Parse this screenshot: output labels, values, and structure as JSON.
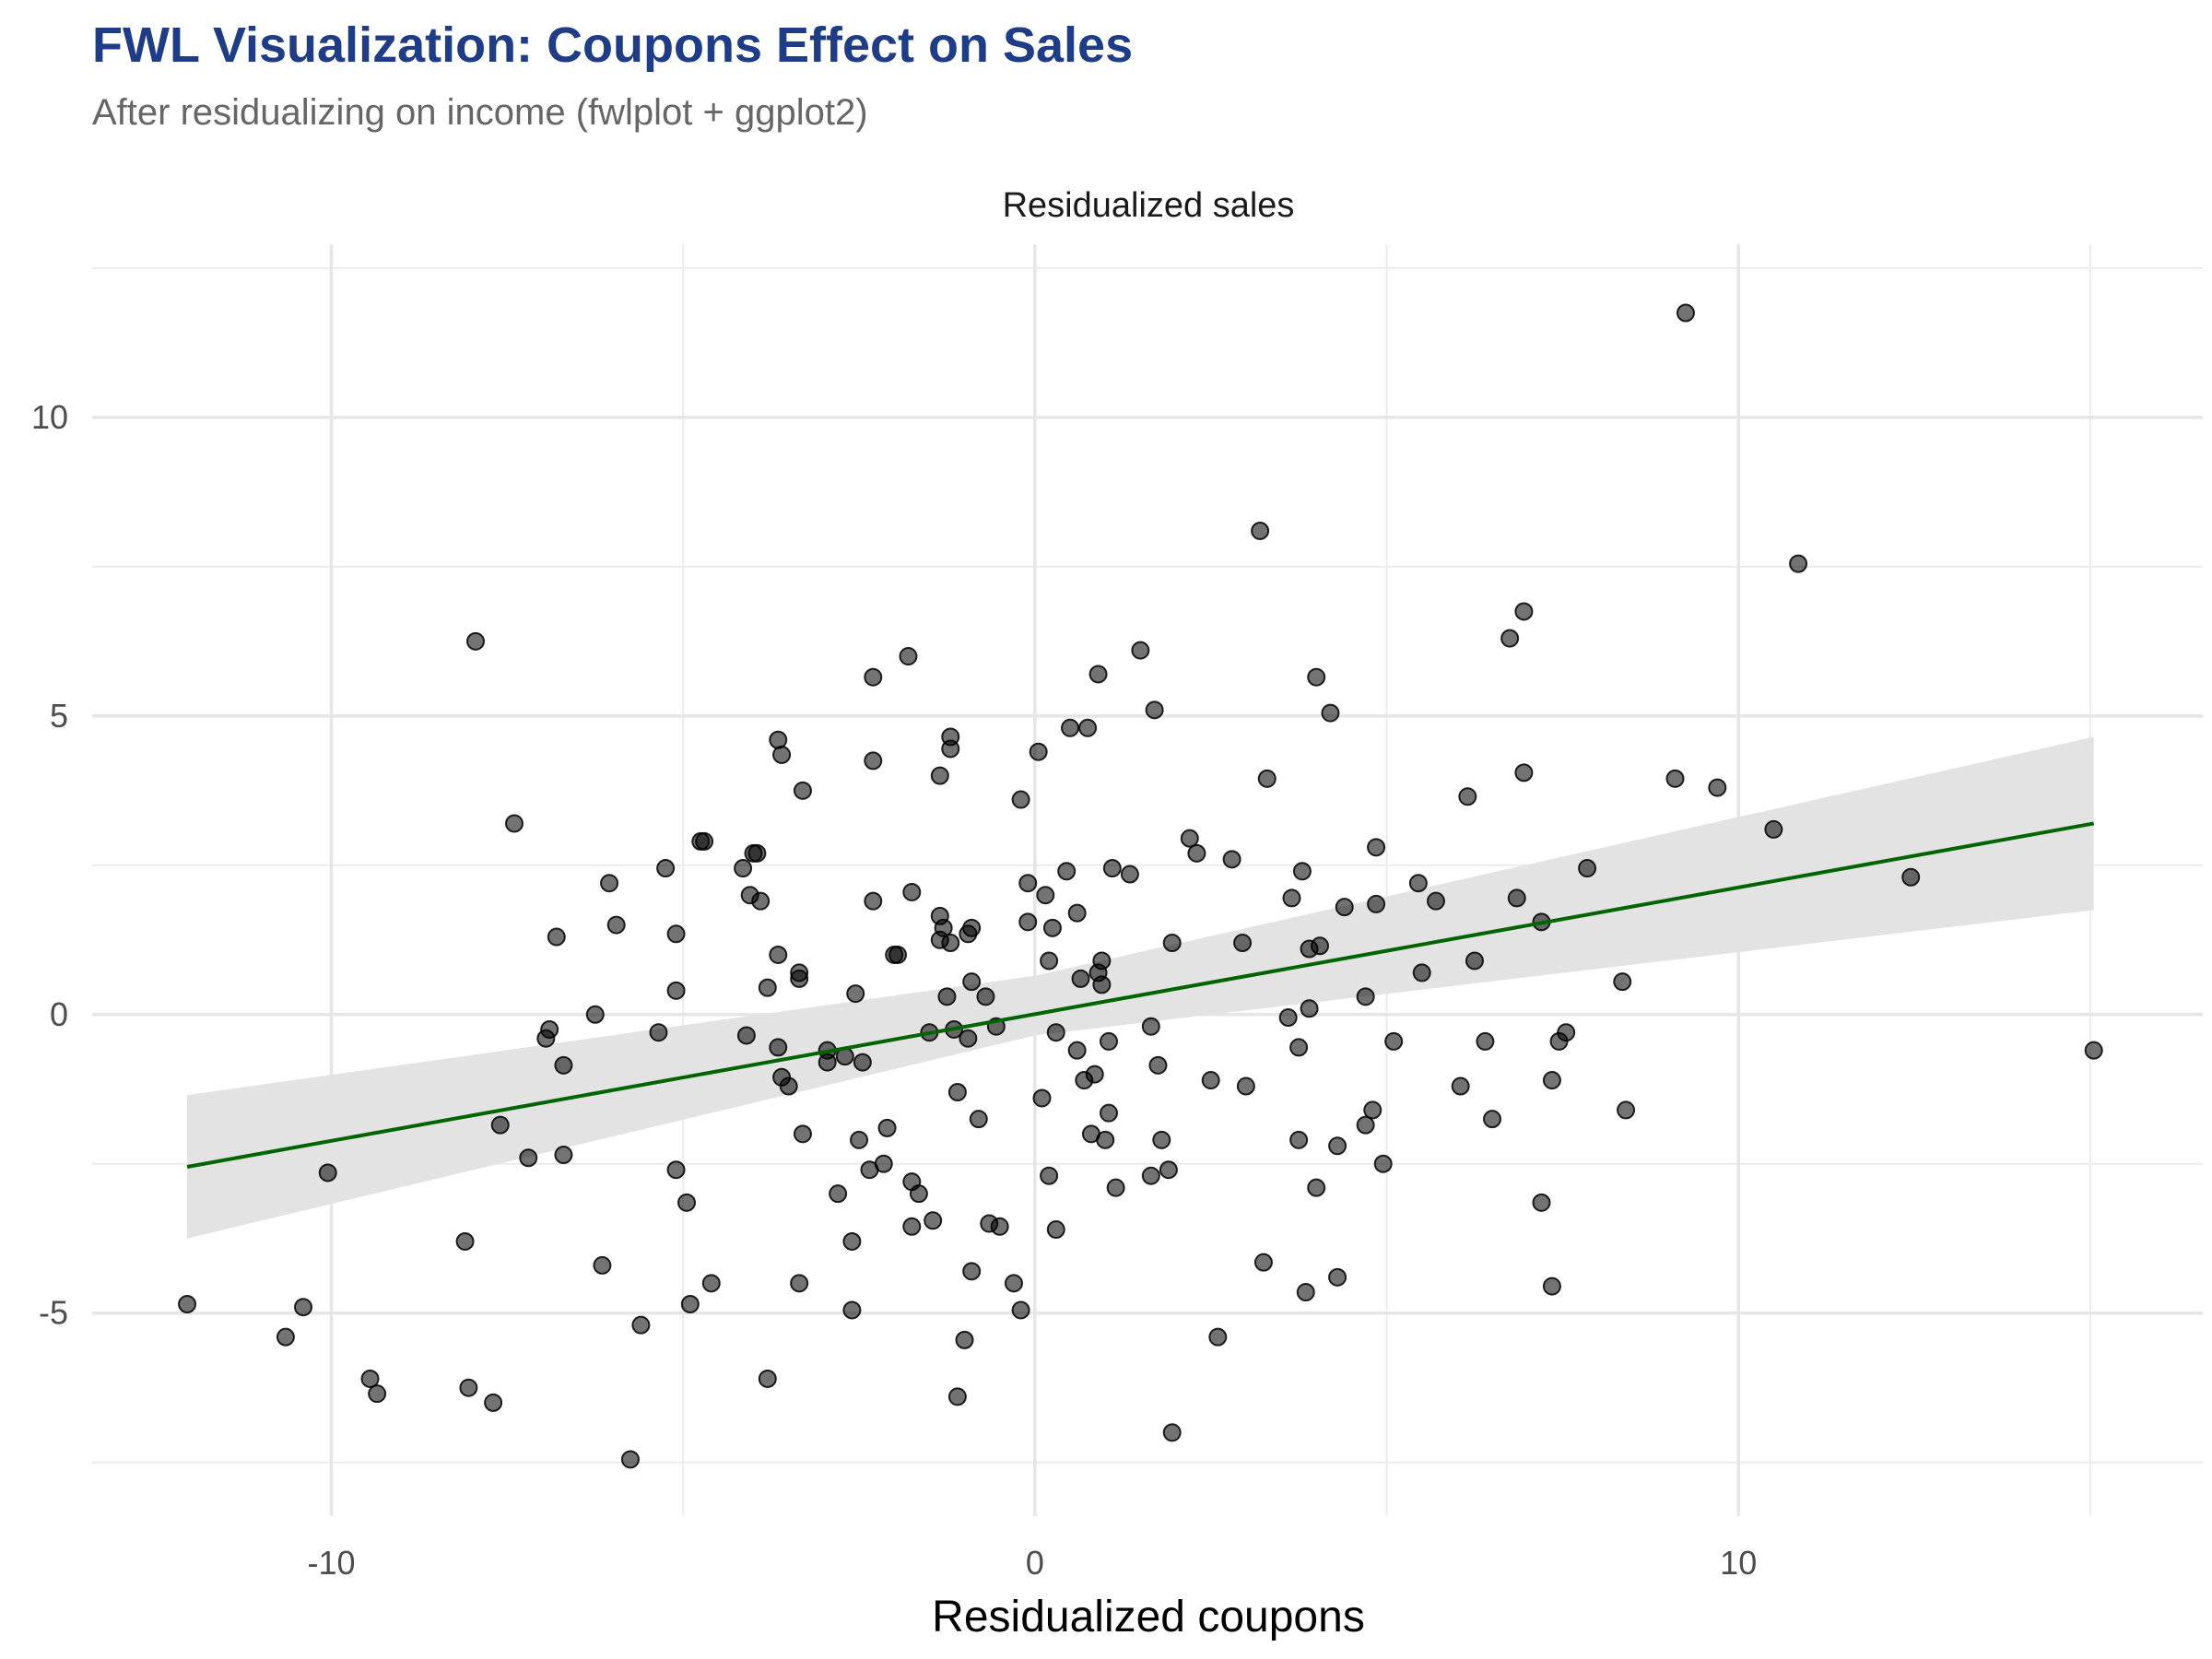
{
  "chart_data": {
    "type": "scatter",
    "title": "FWL Visualization: Coupons Effect on Sales",
    "subtitle": "After residualizing on income (fwlplot + ggplot2)",
    "xlabel": "Residualized coupons",
    "ylabel": "Residualized sales",
    "xlim": [
      -13.4,
      16.6
    ],
    "ylim": [
      -8.4,
      12.9
    ],
    "x_ticks": [
      -10,
      0,
      10
    ],
    "y_ticks": [
      -5,
      0,
      5,
      10
    ],
    "x_tick_labels": [
      "-10",
      "0",
      "10"
    ],
    "y_tick_labels": [
      "-5",
      "0",
      "5",
      "10"
    ],
    "grid": true,
    "fit": {
      "x": [
        -12.05,
        15.05
      ],
      "y": [
        -2.55,
        3.2
      ],
      "color": "#006400"
    },
    "confidence_band": {
      "x": [
        -12.05,
        0.0,
        15.05
      ],
      "lower": [
        -3.75,
        -0.35,
        1.75
      ],
      "upper": [
        -1.35,
        0.65,
        4.65
      ],
      "color": "#e3e3e3"
    },
    "point_color": "#000000",
    "points": [
      [
        -12.05,
        -4.85
      ],
      [
        -10.65,
        -5.4
      ],
      [
        -10.4,
        -4.9
      ],
      [
        -10.05,
        -2.65
      ],
      [
        -9.45,
        -6.1
      ],
      [
        -9.35,
        -6.35
      ],
      [
        -8.05,
        -6.25
      ],
      [
        -8.1,
        -3.8
      ],
      [
        -7.95,
        6.25
      ],
      [
        -7.7,
        -6.5
      ],
      [
        -7.6,
        -1.85
      ],
      [
        -7.4,
        3.2
      ],
      [
        -7.2,
        -2.4
      ],
      [
        -6.95,
        -0.4
      ],
      [
        -6.9,
        -0.25
      ],
      [
        -6.8,
        1.3
      ],
      [
        -6.7,
        -0.85
      ],
      [
        -6.7,
        -2.35
      ],
      [
        -6.25,
        0.0
      ],
      [
        -6.15,
        -4.2
      ],
      [
        -6.05,
        2.2
      ],
      [
        -5.95,
        1.5
      ],
      [
        -5.75,
        -7.45
      ],
      [
        -5.6,
        -5.2
      ],
      [
        -5.35,
        -0.3
      ],
      [
        -5.25,
        2.45
      ],
      [
        -5.1,
        1.35
      ],
      [
        -5.1,
        0.4
      ],
      [
        -5.1,
        -2.6
      ],
      [
        -4.95,
        -3.15
      ],
      [
        -4.9,
        -4.85
      ],
      [
        -4.75,
        2.9
      ],
      [
        -4.7,
        2.9
      ],
      [
        -4.6,
        -4.5
      ],
      [
        -4.15,
        2.45
      ],
      [
        -4.1,
        -0.35
      ],
      [
        -4.05,
        2.0
      ],
      [
        -4.0,
        2.7
      ],
      [
        -3.95,
        2.7
      ],
      [
        -3.9,
        1.9
      ],
      [
        -3.8,
        0.45
      ],
      [
        -3.8,
        -6.1
      ],
      [
        -3.65,
        4.6
      ],
      [
        -3.65,
        1.0
      ],
      [
        -3.65,
        -0.55
      ],
      [
        -3.6,
        4.35
      ],
      [
        -3.6,
        -1.05
      ],
      [
        -3.5,
        -1.2
      ],
      [
        -3.35,
        0.6
      ],
      [
        -3.35,
        0.7
      ],
      [
        -3.3,
        3.75
      ],
      [
        -3.3,
        -2.0
      ],
      [
        -3.35,
        -4.5
      ],
      [
        -2.95,
        -0.6
      ],
      [
        -2.95,
        -0.8
      ],
      [
        -2.8,
        -3.0
      ],
      [
        -2.7,
        -0.7
      ],
      [
        -2.6,
        -3.8
      ],
      [
        -2.6,
        -4.95
      ],
      [
        -2.55,
        0.35
      ],
      [
        -2.5,
        -2.1
      ],
      [
        -2.45,
        -0.8
      ],
      [
        -2.35,
        -2.6
      ],
      [
        -2.3,
        5.65
      ],
      [
        -2.3,
        4.25
      ],
      [
        -2.3,
        1.9
      ],
      [
        -2.15,
        -2.5
      ],
      [
        -2.1,
        -1.9
      ],
      [
        -2.0,
        1.0
      ],
      [
        -1.95,
        1.0
      ],
      [
        -1.8,
        6.0
      ],
      [
        -1.75,
        2.05
      ],
      [
        -1.75,
        -2.8
      ],
      [
        -1.75,
        -3.55
      ],
      [
        -1.65,
        -3.0
      ],
      [
        -1.5,
        -0.3
      ],
      [
        -1.45,
        -3.45
      ],
      [
        -1.35,
        1.25
      ],
      [
        -1.35,
        1.65
      ],
      [
        -1.35,
        4.0
      ],
      [
        -1.3,
        1.45
      ],
      [
        -1.2,
        4.65
      ],
      [
        -1.2,
        4.45
      ],
      [
        -1.25,
        0.3
      ],
      [
        -1.2,
        1.2
      ],
      [
        -1.15,
        -0.25
      ],
      [
        -1.1,
        -1.3
      ],
      [
        -1.1,
        -6.4
      ],
      [
        -1.0,
        -5.45
      ],
      [
        -0.95,
        -0.4
      ],
      [
        -0.95,
        1.35
      ],
      [
        -0.9,
        1.45
      ],
      [
        -0.9,
        0.55
      ],
      [
        -0.9,
        -4.3
      ],
      [
        -0.8,
        -1.75
      ],
      [
        -0.7,
        0.3
      ],
      [
        -0.65,
        -3.5
      ],
      [
        -0.55,
        -0.2
      ],
      [
        -0.5,
        -3.55
      ],
      [
        -0.3,
        -4.5
      ],
      [
        -0.2,
        3.6
      ],
      [
        -0.2,
        -4.95
      ],
      [
        -0.1,
        1.55
      ],
      [
        -0.1,
        2.2
      ],
      [
        0.05,
        4.4
      ],
      [
        0.1,
        -1.4
      ],
      [
        0.15,
        2.0
      ],
      [
        0.2,
        -2.7
      ],
      [
        0.2,
        0.9
      ],
      [
        0.25,
        1.45
      ],
      [
        0.3,
        -0.3
      ],
      [
        0.3,
        -3.6
      ],
      [
        0.45,
        2.4
      ],
      [
        0.5,
        4.8
      ],
      [
        0.6,
        1.7
      ],
      [
        0.6,
        -0.6
      ],
      [
        0.65,
        0.6
      ],
      [
        0.7,
        -1.1
      ],
      [
        0.75,
        4.8
      ],
      [
        0.8,
        -2.0
      ],
      [
        0.85,
        -1.0
      ],
      [
        0.9,
        0.7
      ],
      [
        0.9,
        5.7
      ],
      [
        0.95,
        0.9
      ],
      [
        0.95,
        0.5
      ],
      [
        1.0,
        -2.1
      ],
      [
        1.05,
        -0.45
      ],
      [
        1.05,
        -1.65
      ],
      [
        1.1,
        2.45
      ],
      [
        1.15,
        -2.9
      ],
      [
        1.35,
        2.35
      ],
      [
        1.5,
        6.1
      ],
      [
        1.65,
        -0.2
      ],
      [
        1.65,
        -2.7
      ],
      [
        1.7,
        5.1
      ],
      [
        1.75,
        -0.85
      ],
      [
        1.8,
        -2.1
      ],
      [
        1.9,
        -2.6
      ],
      [
        1.95,
        1.2
      ],
      [
        1.95,
        -7.0
      ],
      [
        2.2,
        2.95
      ],
      [
        2.3,
        2.7
      ],
      [
        2.5,
        -1.1
      ],
      [
        2.6,
        -5.4
      ],
      [
        2.8,
        2.6
      ],
      [
        2.95,
        1.2
      ],
      [
        3.0,
        -1.2
      ],
      [
        3.2,
        8.1
      ],
      [
        3.25,
        -4.15
      ],
      [
        3.3,
        3.95
      ],
      [
        3.6,
        -0.05
      ],
      [
        3.65,
        1.95
      ],
      [
        3.75,
        -0.55
      ],
      [
        3.75,
        -2.1
      ],
      [
        3.8,
        2.4
      ],
      [
        3.85,
        -4.65
      ],
      [
        3.9,
        0.1
      ],
      [
        3.9,
        1.1
      ],
      [
        4.0,
        -2.9
      ],
      [
        4.0,
        5.65
      ],
      [
        4.05,
        1.15
      ],
      [
        4.2,
        5.05
      ],
      [
        4.3,
        -2.2
      ],
      [
        4.3,
        -4.4
      ],
      [
        4.4,
        1.8
      ],
      [
        4.7,
        -1.85
      ],
      [
        4.7,
        0.3
      ],
      [
        4.8,
        -1.6
      ],
      [
        4.85,
        1.85
      ],
      [
        4.85,
        2.8
      ],
      [
        4.95,
        -2.5
      ],
      [
        5.1,
        -0.45
      ],
      [
        5.45,
        2.2
      ],
      [
        5.5,
        0.7
      ],
      [
        5.7,
        1.9
      ],
      [
        6.05,
        -1.2
      ],
      [
        6.15,
        3.65
      ],
      [
        6.25,
        0.9
      ],
      [
        6.4,
        -0.45
      ],
      [
        6.5,
        -1.75
      ],
      [
        6.75,
        6.3
      ],
      [
        6.85,
        1.95
      ],
      [
        6.95,
        6.75
      ],
      [
        6.95,
        4.05
      ],
      [
        7.2,
        1.55
      ],
      [
        7.2,
        -3.15
      ],
      [
        7.35,
        -1.1
      ],
      [
        7.35,
        -4.55
      ],
      [
        7.45,
        -0.45
      ],
      [
        7.55,
        -0.3
      ],
      [
        7.85,
        2.45
      ],
      [
        8.35,
        0.55
      ],
      [
        8.4,
        -1.6
      ],
      [
        9.1,
        3.95
      ],
      [
        9.25,
        11.75
      ],
      [
        9.7,
        3.8
      ],
      [
        10.5,
        3.1
      ],
      [
        10.85,
        7.55
      ],
      [
        12.45,
        2.3
      ],
      [
        15.05,
        -0.6
      ]
    ]
  }
}
